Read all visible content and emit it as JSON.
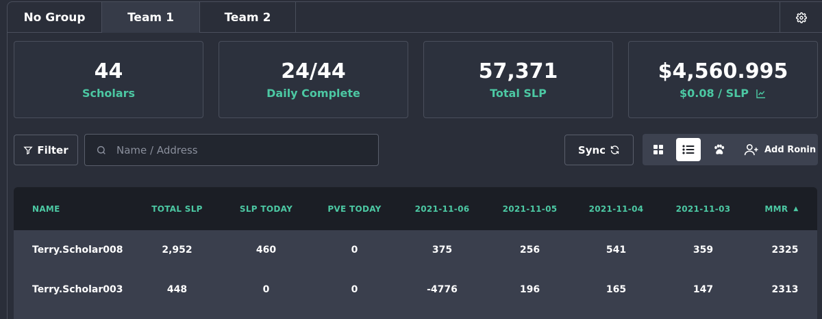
{
  "tabs": [
    "No Group",
    "Team 1",
    "Team 2"
  ],
  "active_tab": "Team 1",
  "stats": {
    "scholars": {
      "value": "44",
      "label": "Scholars"
    },
    "daily": {
      "value": "24/44",
      "label": "Daily Complete"
    },
    "total_slp": {
      "value": "57,371",
      "label": "Total SLP"
    },
    "usd": {
      "value": "$4,560.995",
      "label": "$0.08 / SLP"
    }
  },
  "toolbar": {
    "filter_label": "Filter",
    "search_placeholder": "Name / Address",
    "search_value": "",
    "sync_label": "Sync",
    "add_ronin_label": "Add Ronin"
  },
  "table": {
    "headers": [
      "NAME",
      "TOTAL SLP",
      "SLP TODAY",
      "PVE TODAY",
      "2021-11-06",
      "2021-11-05",
      "2021-11-04",
      "2021-11-03",
      "MMR"
    ],
    "sort_indicator": "▲",
    "rows": [
      [
        "Terry.Scholar008",
        "2,952",
        "460",
        "0",
        "375",
        "256",
        "541",
        "359",
        "2325"
      ],
      [
        "Terry.Scholar003",
        "448",
        "0",
        "0",
        "-4776",
        "196",
        "165",
        "147",
        "2313"
      ]
    ]
  },
  "colors": {
    "accent": "#4cc8a3",
    "background": "#2a2e39",
    "header_bg": "#1b1e25",
    "row_bg": "#3a3f4d"
  },
  "icons": {
    "settings": "gear-icon",
    "filter": "funnel-icon",
    "search": "search-icon",
    "sync": "refresh-icon",
    "grid": "grid-icon",
    "list": "list-icon",
    "paw": "paw-icon",
    "add_user": "add-user-icon",
    "chart": "chart-icon"
  }
}
